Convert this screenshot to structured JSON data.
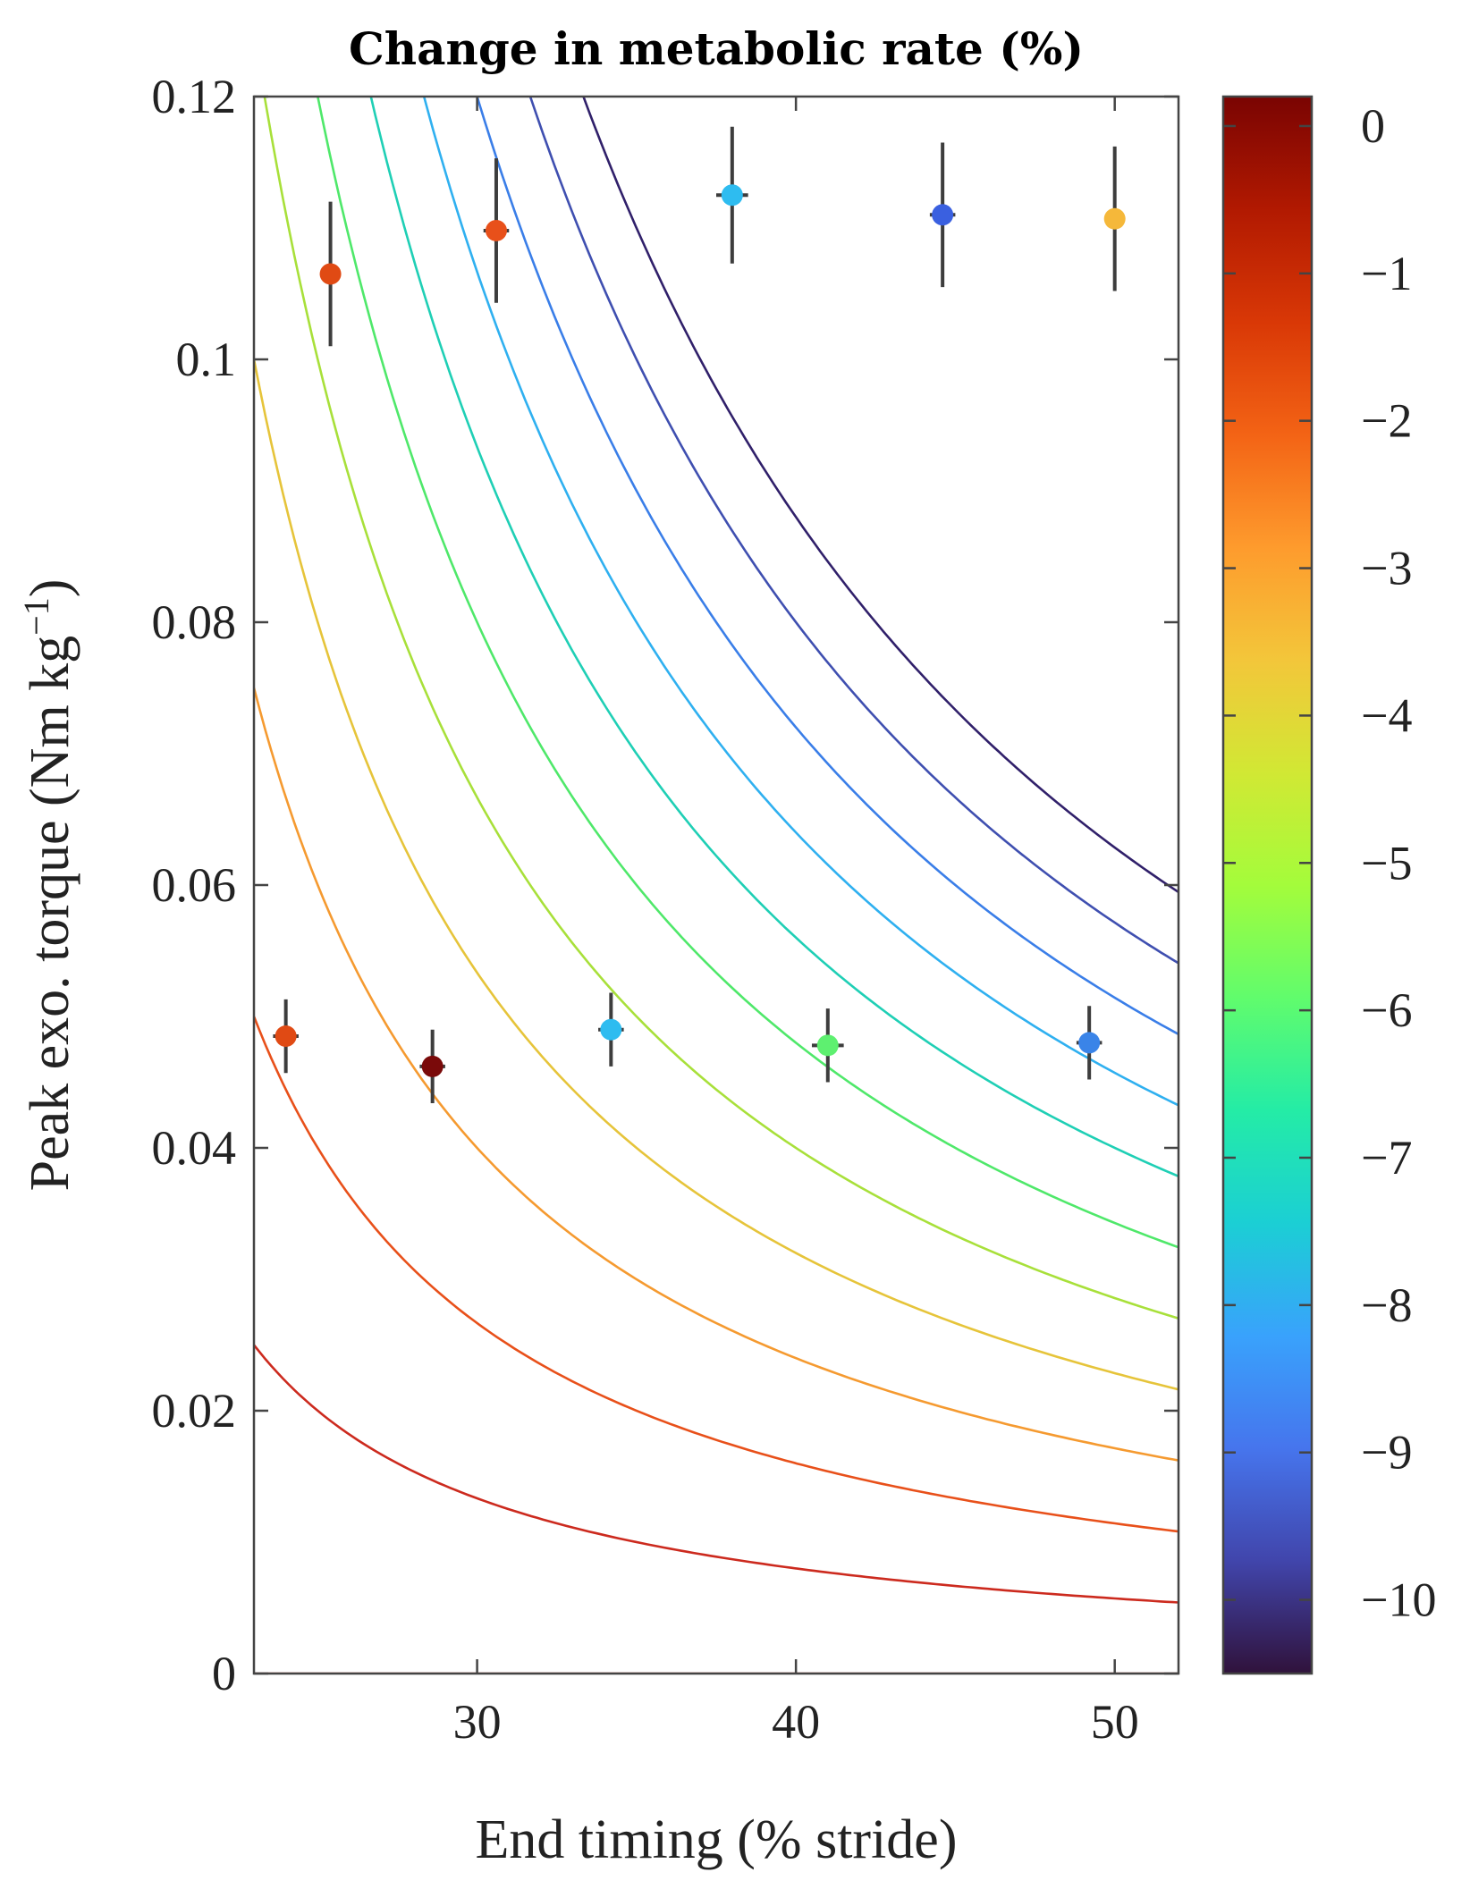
{
  "chart_data": {
    "type": "contour-scatter",
    "title": "Change in metabolic rate (%)",
    "xlabel": "End timing (% stride)",
    "ylabel_main": "Peak exo. torque (Nm kg",
    "ylabel_sup": "−1",
    "ylabel_close": ")",
    "xlim": [
      23,
      52
    ],
    "ylim": [
      0,
      0.12
    ],
    "x_ticks": [
      30,
      40,
      50
    ],
    "x_tick_labels": [
      "30",
      "40",
      "50"
    ],
    "y_ticks": [
      0,
      0.02,
      0.04,
      0.06,
      0.08,
      0.1,
      0.12
    ],
    "y_tick_labels": [
      "0",
      "0.02",
      "0.04",
      "0.06",
      "0.08",
      "0.1",
      "0.12"
    ],
    "contour_model": "torque = k / (end_timing - 15)",
    "contour_levels": [
      {
        "level": 0,
        "k": 0,
        "color": "#c0392b"
      },
      {
        "level": -1,
        "k": 0.2,
        "color": "#cc2a1e"
      },
      {
        "level": -2,
        "k": 0.4,
        "color": "#e8501a"
      },
      {
        "level": -3,
        "k": 0.6,
        "color": "#f59a30"
      },
      {
        "level": -4,
        "k": 0.8,
        "color": "#e6c43a"
      },
      {
        "level": -5,
        "k": 1.0,
        "color": "#a8e03a"
      },
      {
        "level": -6,
        "k": 1.2,
        "color": "#4fe86a"
      },
      {
        "level": -7,
        "k": 1.4,
        "color": "#1fcfb5"
      },
      {
        "level": -8,
        "k": 1.6,
        "color": "#2fb0f0"
      },
      {
        "level": -9,
        "k": 1.8,
        "color": "#3a7ee8"
      },
      {
        "level": -10,
        "k": 2.0,
        "color": "#3f4fb0"
      },
      {
        "level": -11,
        "k": 2.2,
        "color": "#30206a"
      }
    ],
    "points": [
      {
        "x": 24.0,
        "y": 0.0485,
        "y_err": 0.0028,
        "x_err": 0.4,
        "color": "#e04a14",
        "value": -1.8
      },
      {
        "x": 28.6,
        "y": 0.0462,
        "y_err": 0.0028,
        "x_err": 0.4,
        "color": "#7a0a0a",
        "value": -0.1
      },
      {
        "x": 34.2,
        "y": 0.049,
        "y_err": 0.0028,
        "x_err": 0.4,
        "color": "#2ebcf0",
        "value": -7.8
      },
      {
        "x": 41.0,
        "y": 0.0478,
        "y_err": 0.0028,
        "x_err": 0.5,
        "color": "#5ef070",
        "value": -5.8
      },
      {
        "x": 49.2,
        "y": 0.048,
        "y_err": 0.0028,
        "x_err": 0.4,
        "color": "#3a84e8",
        "value": -8.8
      },
      {
        "x": 25.4,
        "y": 0.1065,
        "y_err": 0.0055,
        "x_err": 0.3,
        "color": "#e04a14",
        "value": -1.8
      },
      {
        "x": 30.6,
        "y": 0.1098,
        "y_err": 0.0055,
        "x_err": 0.4,
        "color": "#e8501a",
        "value": -1.9
      },
      {
        "x": 38.0,
        "y": 0.1125,
        "y_err": 0.0052,
        "x_err": 0.5,
        "color": "#2ebcf0",
        "value": -7.9
      },
      {
        "x": 44.6,
        "y": 0.111,
        "y_err": 0.0055,
        "x_err": 0.4,
        "color": "#3a60e0",
        "value": -9.2
      },
      {
        "x": 50.0,
        "y": 0.1107,
        "y_err": 0.0055,
        "x_err": 0.3,
        "color": "#f5b83a",
        "value": -3.1
      }
    ],
    "colorbar": {
      "range": [
        -10.5,
        0.2
      ],
      "ticks": [
        0,
        -1,
        -2,
        -3,
        -4,
        -5,
        -6,
        -7,
        -8,
        -9,
        -10
      ],
      "tick_labels": [
        "0",
        "−1",
        "−2",
        "−3",
        "−4",
        "−5",
        "−6",
        "−7",
        "−8",
        "−9",
        "−10"
      ],
      "colors": [
        "#30123b",
        "#4145ab",
        "#4675ed",
        "#39a2fc",
        "#1bcfd4",
        "#24eca6",
        "#61fc6c",
        "#a4fc3b",
        "#d1e834",
        "#f3c63a",
        "#fe9b2d",
        "#f36315",
        "#d93806",
        "#b11901",
        "#7a0402"
      ]
    }
  }
}
